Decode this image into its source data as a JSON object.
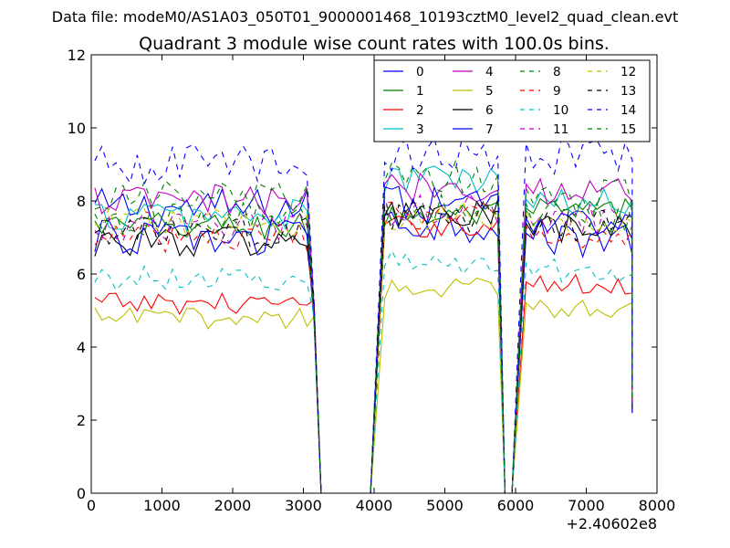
{
  "chart_data": {
    "type": "line",
    "suptitle": "Data file: modeM0/AS1A03_050T01_9000001468_10193cztM0_level2_quad_clean.evt",
    "title": "Quadrant 3 module wise count rates with 100.0s bins.",
    "xlabel": "",
    "ylabel": "",
    "xlim": [
      0,
      8000
    ],
    "ylim": [
      0,
      12
    ],
    "x_offset_label": "+2.40602e8",
    "x_ticks": [
      0,
      1000,
      2000,
      3000,
      4000,
      5000,
      6000,
      7000,
      8000
    ],
    "y_ticks": [
      0,
      2,
      4,
      6,
      8,
      10,
      12
    ],
    "legend_columns": 4,
    "legend_position": "top-right",
    "segments": [
      {
        "x_start": 50,
        "x_end": 3050
      },
      {
        "x_start": 4150,
        "x_end": 5750
      },
      {
        "x_start": 6150,
        "x_end": 7650
      }
    ],
    "zero_x": [
      3250,
      3350,
      3450,
      3550,
      3650,
      3750,
      3850,
      3950,
      5850,
      5950
    ],
    "end_values": {
      "3150": 5.0,
      "7650": 2.5
    },
    "series": [
      {
        "name": "0",
        "color": "#0000ff",
        "style": "solid",
        "levels": [
          7.8,
          7.4,
          7.0
        ],
        "amplitude": 0.55
      },
      {
        "name": "1",
        "color": "#008000",
        "style": "solid",
        "levels": [
          7.3,
          7.6,
          7.7
        ],
        "amplitude": 0.4
      },
      {
        "name": "2",
        "color": "#ff0000",
        "style": "solid",
        "levels": [
          5.2,
          7.3,
          5.7
        ],
        "amplitude": 0.3
      },
      {
        "name": "3",
        "color": "#00bfbf",
        "style": "solid",
        "levels": [
          7.6,
          8.6,
          7.9
        ],
        "amplitude": 0.45
      },
      {
        "name": "4",
        "color": "#bf00bf",
        "style": "solid",
        "levels": [
          8.0,
          8.4,
          8.3
        ],
        "amplitude": 0.45
      },
      {
        "name": "5",
        "color": "#bfbf00",
        "style": "solid",
        "levels": [
          4.8,
          5.6,
          5.1
        ],
        "amplitude": 0.3
      },
      {
        "name": "6",
        "color": "#000000",
        "style": "solid",
        "levels": [
          6.9,
          7.6,
          7.2
        ],
        "amplitude": 0.45
      },
      {
        "name": "7",
        "color": "#0000ff",
        "style": "solid",
        "levels": [
          7.0,
          7.9,
          7.3
        ],
        "amplitude": 0.5
      },
      {
        "name": "8",
        "color": "#008000",
        "style": "dashed",
        "levels": [
          8.1,
          8.6,
          8.1
        ],
        "amplitude": 0.5
      },
      {
        "name": "9",
        "color": "#ff0000",
        "style": "dashed",
        "levels": [
          7.0,
          7.6,
          7.1
        ],
        "amplitude": 0.4
      },
      {
        "name": "10",
        "color": "#00bfbf",
        "style": "dashed",
        "levels": [
          5.9,
          6.3,
          6.1
        ],
        "amplitude": 0.35
      },
      {
        "name": "11",
        "color": "#bf00bf",
        "style": "dashed",
        "levels": [
          7.3,
          7.8,
          7.5
        ],
        "amplitude": 0.45
      },
      {
        "name": "12",
        "color": "#bfbf00",
        "style": "dashed",
        "levels": [
          7.4,
          7.6,
          7.5
        ],
        "amplitude": 0.4
      },
      {
        "name": "13",
        "color": "#000000",
        "style": "dashed",
        "levels": [
          7.1,
          7.6,
          7.3
        ],
        "amplitude": 0.45
      },
      {
        "name": "14",
        "color": "#0000ff",
        "style": "dashed",
        "levels": [
          9.0,
          9.3,
          9.2
        ],
        "amplitude": 0.55
      },
      {
        "name": "15",
        "color": "#008000",
        "style": "dashed",
        "levels": [
          7.5,
          7.8,
          7.6
        ],
        "amplitude": 0.45
      }
    ]
  }
}
